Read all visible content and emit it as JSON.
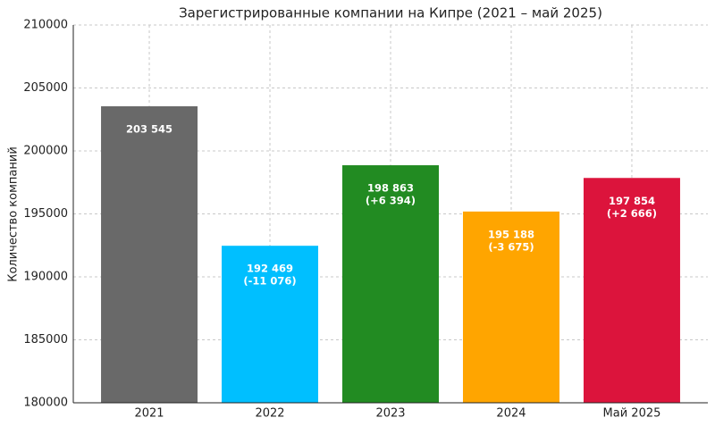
{
  "chart_data": {
    "type": "bar",
    "title": "Зарегистрированные компании на Кипре (2021 – май 2025)",
    "y_label": "Количество компаний",
    "categories": [
      "2021",
      "2022",
      "2023",
      "2024",
      "Май 2025"
    ],
    "values": [
      203545,
      192469,
      198863,
      195188,
      197854
    ],
    "value_labels": [
      "203 545",
      "192 469",
      "198 863",
      "195 188",
      "197 854"
    ],
    "change_labels": [
      null,
      "(-11 076)",
      "(+6 394)",
      "(-3 675)",
      "(+2 666)"
    ],
    "colors": [
      "#696969",
      "#00bfff",
      "#228b22",
      "#ffa500",
      "#dc143c"
    ],
    "ylim": [
      180000,
      210000
    ],
    "yticks": [
      180000,
      185000,
      190000,
      195000,
      200000,
      205000,
      210000
    ],
    "grid": true
  }
}
